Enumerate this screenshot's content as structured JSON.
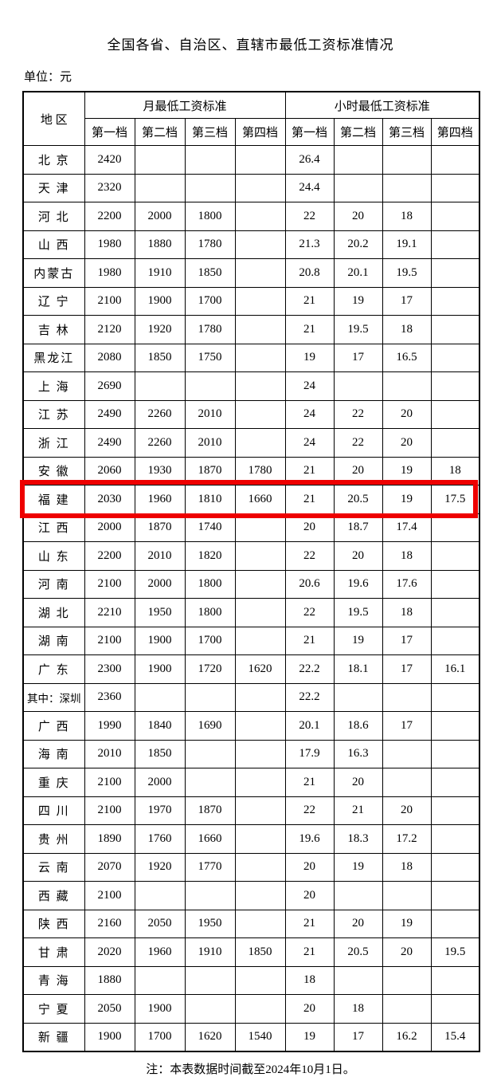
{
  "document": {
    "title": "全国各省、自治区、直辖市最低工资标准情况",
    "unit_label": "单位：元",
    "note": "注：本表数据时间截至2024年10月1日。"
  },
  "table": {
    "region_header": "地 区",
    "month_group_header": "月最低工资标准",
    "hour_group_header": "小时最低工资标准",
    "tier_labels": [
      "第一档",
      "第二档",
      "第三档",
      "第四档"
    ],
    "highlight_color": "#ee0000",
    "highlighted_region": "福 建",
    "rows": [
      {
        "region": "北 京",
        "monthly": [
          "2420",
          "",
          "",
          ""
        ],
        "hourly": [
          "26.4",
          "",
          "",
          ""
        ],
        "highlighted": false
      },
      {
        "region": "天 津",
        "monthly": [
          "2320",
          "",
          "",
          ""
        ],
        "hourly": [
          "24.4",
          "",
          "",
          ""
        ],
        "highlighted": false
      },
      {
        "region": "河 北",
        "monthly": [
          "2200",
          "2000",
          "1800",
          ""
        ],
        "hourly": [
          "22",
          "20",
          "18",
          ""
        ],
        "highlighted": false
      },
      {
        "region": "山 西",
        "monthly": [
          "1980",
          "1880",
          "1780",
          ""
        ],
        "hourly": [
          "21.3",
          "20.2",
          "19.1",
          ""
        ],
        "highlighted": false
      },
      {
        "region": "内蒙古",
        "monthly": [
          "1980",
          "1910",
          "1850",
          ""
        ],
        "hourly": [
          "20.8",
          "20.1",
          "19.5",
          ""
        ],
        "highlighted": false
      },
      {
        "region": "辽 宁",
        "monthly": [
          "2100",
          "1900",
          "1700",
          ""
        ],
        "hourly": [
          "21",
          "19",
          "17",
          ""
        ],
        "highlighted": false
      },
      {
        "region": "吉 林",
        "monthly": [
          "2120",
          "1920",
          "1780",
          ""
        ],
        "hourly": [
          "21",
          "19.5",
          "18",
          ""
        ],
        "highlighted": false
      },
      {
        "region": "黑龙江",
        "monthly": [
          "2080",
          "1850",
          "1750",
          ""
        ],
        "hourly": [
          "19",
          "17",
          "16.5",
          ""
        ],
        "highlighted": false
      },
      {
        "region": "上 海",
        "monthly": [
          "2690",
          "",
          "",
          ""
        ],
        "hourly": [
          "24",
          "",
          "",
          ""
        ],
        "highlighted": false
      },
      {
        "region": "江 苏",
        "monthly": [
          "2490",
          "2260",
          "2010",
          ""
        ],
        "hourly": [
          "24",
          "22",
          "20",
          ""
        ],
        "highlighted": false
      },
      {
        "region": "浙 江",
        "monthly": [
          "2490",
          "2260",
          "2010",
          ""
        ],
        "hourly": [
          "24",
          "22",
          "20",
          ""
        ],
        "highlighted": false
      },
      {
        "region": "安 徽",
        "monthly": [
          "2060",
          "1930",
          "1870",
          "1780"
        ],
        "hourly": [
          "21",
          "20",
          "19",
          "18"
        ],
        "highlighted": false
      },
      {
        "region": "福 建",
        "monthly": [
          "2030",
          "1960",
          "1810",
          "1660"
        ],
        "hourly": [
          "21",
          "20.5",
          "19",
          "17.5"
        ],
        "highlighted": true
      },
      {
        "region": "江 西",
        "monthly": [
          "2000",
          "1870",
          "1740",
          ""
        ],
        "hourly": [
          "20",
          "18.7",
          "17.4",
          ""
        ],
        "highlighted": false
      },
      {
        "region": "山 东",
        "monthly": [
          "2200",
          "2010",
          "1820",
          ""
        ],
        "hourly": [
          "22",
          "20",
          "18",
          ""
        ],
        "highlighted": false
      },
      {
        "region": "河 南",
        "monthly": [
          "2100",
          "2000",
          "1800",
          ""
        ],
        "hourly": [
          "20.6",
          "19.6",
          "17.6",
          ""
        ],
        "highlighted": false
      },
      {
        "region": "湖 北",
        "monthly": [
          "2210",
          "1950",
          "1800",
          ""
        ],
        "hourly": [
          "22",
          "19.5",
          "18",
          ""
        ],
        "highlighted": false
      },
      {
        "region": "湖 南",
        "monthly": [
          "2100",
          "1900",
          "1700",
          ""
        ],
        "hourly": [
          "21",
          "19",
          "17",
          ""
        ],
        "highlighted": false
      },
      {
        "region": "广 东",
        "monthly": [
          "2300",
          "1900",
          "1720",
          "1620"
        ],
        "hourly": [
          "22.2",
          "18.1",
          "17",
          "16.1"
        ],
        "highlighted": false
      },
      {
        "region": "其中：深圳",
        "monthly": [
          "2360",
          "",
          "",
          ""
        ],
        "hourly": [
          "22.2",
          "",
          "",
          ""
        ],
        "highlighted": false
      },
      {
        "region": "广 西",
        "monthly": [
          "1990",
          "1840",
          "1690",
          ""
        ],
        "hourly": [
          "20.1",
          "18.6",
          "17",
          ""
        ],
        "highlighted": false
      },
      {
        "region": "海 南",
        "monthly": [
          "2010",
          "1850",
          "",
          ""
        ],
        "hourly": [
          "17.9",
          "16.3",
          "",
          ""
        ],
        "highlighted": false
      },
      {
        "region": "重 庆",
        "monthly": [
          "2100",
          "2000",
          "",
          ""
        ],
        "hourly": [
          "21",
          "20",
          "",
          ""
        ],
        "highlighted": false
      },
      {
        "region": "四 川",
        "monthly": [
          "2100",
          "1970",
          "1870",
          ""
        ],
        "hourly": [
          "22",
          "21",
          "20",
          ""
        ],
        "highlighted": false
      },
      {
        "region": "贵 州",
        "monthly": [
          "1890",
          "1760",
          "1660",
          ""
        ],
        "hourly": [
          "19.6",
          "18.3",
          "17.2",
          ""
        ],
        "highlighted": false
      },
      {
        "region": "云 南",
        "monthly": [
          "2070",
          "1920",
          "1770",
          ""
        ],
        "hourly": [
          "20",
          "19",
          "18",
          ""
        ],
        "highlighted": false
      },
      {
        "region": "西 藏",
        "monthly": [
          "2100",
          "",
          "",
          ""
        ],
        "hourly": [
          "20",
          "",
          "",
          ""
        ],
        "highlighted": false
      },
      {
        "region": "陕 西",
        "monthly": [
          "2160",
          "2050",
          "1950",
          ""
        ],
        "hourly": [
          "21",
          "20",
          "19",
          ""
        ],
        "highlighted": false
      },
      {
        "region": "甘 肃",
        "monthly": [
          "2020",
          "1960",
          "1910",
          "1850"
        ],
        "hourly": [
          "21",
          "20.5",
          "20",
          "19.5"
        ],
        "highlighted": false
      },
      {
        "region": "青 海",
        "monthly": [
          "1880",
          "",
          "",
          ""
        ],
        "hourly": [
          "18",
          "",
          "",
          ""
        ],
        "highlighted": false
      },
      {
        "region": "宁 夏",
        "monthly": [
          "2050",
          "1900",
          "",
          ""
        ],
        "hourly": [
          "20",
          "18",
          "",
          ""
        ],
        "highlighted": false
      },
      {
        "region": "新 疆",
        "monthly": [
          "1900",
          "1700",
          "1620",
          "1540"
        ],
        "hourly": [
          "19",
          "17",
          "16.2",
          "15.4"
        ],
        "highlighted": false
      }
    ]
  }
}
